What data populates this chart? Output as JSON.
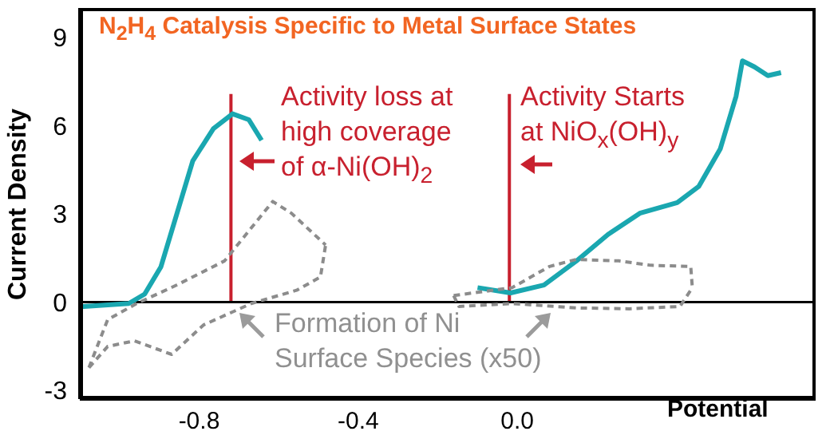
{
  "chart_data": {
    "type": "line",
    "title": "N$_{2}$H$_{4}$ Catalysis Specific to Metal Surface States",
    "xlabel": "Potential",
    "ylabel": "Current Density",
    "xlim": [
      -1.1,
      0.75
    ],
    "ylim": [
      -3.3,
      10
    ],
    "xticks": [
      -0.8,
      -0.4,
      {
        "value": 0,
        "label": "0.0"
      }
    ],
    "yticks": [
      -3,
      0,
      3,
      6,
      9
    ],
    "series": [
      {
        "color": "#1aa7b0",
        "line_style": "solid",
        "x": [
          -1.097,
          -0.977,
          -0.937,
          -0.896,
          -0.856,
          -0.816,
          -0.764,
          -0.716,
          -0.675,
          -0.643
        ],
        "values": [
          -0.16,
          -0.05,
          0.27,
          1.2,
          3.0,
          4.8,
          5.9,
          6.4,
          6.2,
          5.5
        ]
      },
      {
        "color": "#1aa7b0",
        "line_style": "solid",
        "x": [
          -0.1,
          -0.017,
          0.067,
          0.148,
          0.228,
          0.308,
          0.402,
          0.456,
          0.51,
          0.55,
          0.566,
          0.596,
          0.63,
          0.663
        ],
        "values": [
          0.49,
          0.31,
          0.58,
          1.39,
          2.3,
          3.02,
          3.38,
          3.93,
          5.2,
          7.0,
          8.2,
          8.0,
          7.7,
          7.8
        ]
      },
      {
        "color": "#8c8c8c",
        "line_style": "dashed",
        "x": [
          -1.077,
          -1.03,
          -0.957,
          -0.856,
          -0.736,
          -0.615,
          -0.568,
          -0.482
        ],
        "values": [
          -2.23,
          -0.6,
          -0.05,
          0.58,
          1.4,
          3.42,
          3.02,
          1.94
        ]
      },
      {
        "color": "#8c8c8c",
        "line_style": "dashed",
        "x": [
          -1.077,
          -1.03,
          -0.963,
          -0.869,
          -0.789,
          -0.669,
          -0.555,
          -0.495,
          -0.482
        ],
        "values": [
          -2.23,
          -1.51,
          -1.32,
          -1.78,
          -0.78,
          -0.05,
          0.4,
          0.85,
          1.94
        ]
      },
      {
        "color": "#8c8c8c",
        "line_style": "dashed",
        "x": [
          -0.16,
          -0.013,
          0.081,
          0.148,
          0.255,
          0.335,
          0.436,
          0.44
        ],
        "values": [
          0.22,
          0.49,
          1.21,
          1.45,
          1.4,
          1.25,
          1.21,
          0.49
        ]
      },
      {
        "color": "#8c8c8c",
        "line_style": "dashed",
        "x": [
          -0.16,
          -0.147,
          -0.013,
          0.148,
          0.281,
          0.409,
          0.44
        ],
        "values": [
          0.22,
          -0.15,
          -0.05,
          -0.2,
          -0.23,
          -0.15,
          0.49
        ]
      }
    ],
    "ref_lines": [
      {
        "axis": "x",
        "value": -0.72,
        "color": "#c8202e"
      },
      {
        "axis": "x",
        "value": -0.02,
        "color": "#c8202e"
      },
      {
        "axis": "y",
        "value": 0,
        "color": "#000000"
      }
    ],
    "annotations": [
      "Activity loss at\nhigh coverage\nof α-Ni(OH)$_{2}$",
      "Activity Starts\nat NiO$_{x}$(OH)$_{y}$",
      "Formation of Ni\nSurface Species (x50)"
    ]
  }
}
